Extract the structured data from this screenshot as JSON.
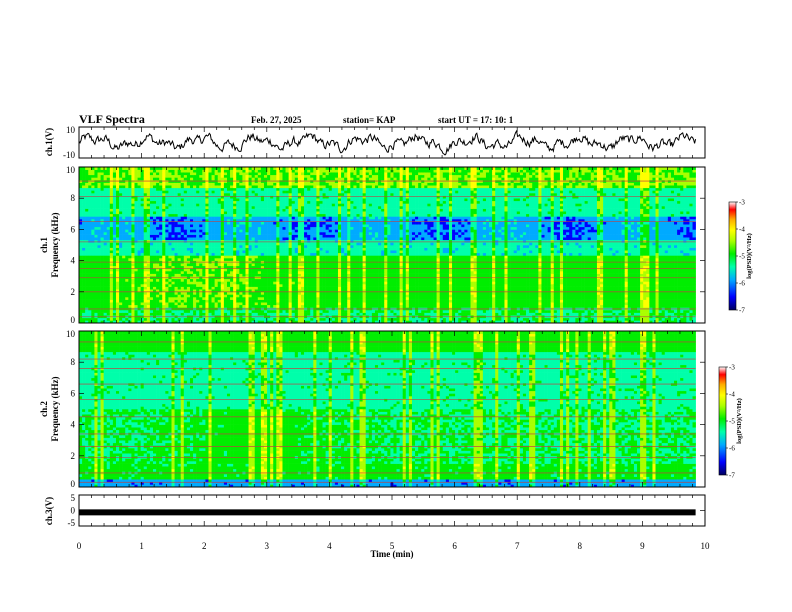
{
  "header": {
    "title": "VLF Spectra",
    "date": "Feb. 27, 2025",
    "station": "station= KAP",
    "start_ut": "start  UT =   17: 10: 1"
  },
  "chart_data": [
    {
      "type": "line",
      "panel": "ch1-waveform",
      "ylabel": "ch.1(V)",
      "ylim": [
        -10,
        10
      ],
      "yticks": [
        "10",
        "-10"
      ],
      "x_range_min": [
        0,
        9.85
      ],
      "y_typical": [
        -5,
        5
      ],
      "color": "#000000"
    },
    {
      "type": "heatmap",
      "panel": "ch1-spectrogram",
      "ylabel": "ch.1\nFrequency (kHz)",
      "ylim": [
        0,
        10
      ],
      "yticks": [
        "0",
        "2",
        "4",
        "6",
        "8",
        "10"
      ],
      "x_range_min": [
        0,
        9.85
      ],
      "colorbar": {
        "label": "log(PSD)(V²/Hz)",
        "range": [
          -7,
          -3
        ],
        "ticks": [
          "-3",
          "-4",
          "-5",
          "-6",
          "-7"
        ]
      }
    },
    {
      "type": "heatmap",
      "panel": "ch2-spectrogram",
      "ylabel": "ch.2\nFrequency (kHz)",
      "ylim": [
        0,
        10
      ],
      "yticks": [
        "0",
        "2",
        "4",
        "6",
        "8",
        "10"
      ],
      "x_range_min": [
        0,
        9.85
      ],
      "colorbar": {
        "label": "log(PSD)(V²/Hz)",
        "range": [
          -7,
          -3
        ],
        "ticks": [
          "-3",
          "-4",
          "-5",
          "-6",
          "-7"
        ]
      }
    },
    {
      "type": "line",
      "panel": "ch3-waveform",
      "ylabel": "ch.3(V)",
      "ylim": [
        -5,
        5
      ],
      "yticks": [
        "5",
        "0",
        "-5"
      ],
      "x_range_min": [
        0,
        9.85
      ],
      "value_constant": -0.6,
      "color": "#000000"
    }
  ],
  "x_axis": {
    "label": "Time  (min)",
    "xlim": [
      0,
      10
    ],
    "ticks": [
      "0",
      "1",
      "2",
      "3",
      "4",
      "5",
      "6",
      "7",
      "8",
      "9",
      "10"
    ]
  },
  "colormap": [
    "#000060",
    "#0000ff",
    "#00aaff",
    "#00ffaa",
    "#00ee00",
    "#aaff00",
    "#ffff00",
    "#ffaa00",
    "#ff0000",
    "#ffffff"
  ]
}
